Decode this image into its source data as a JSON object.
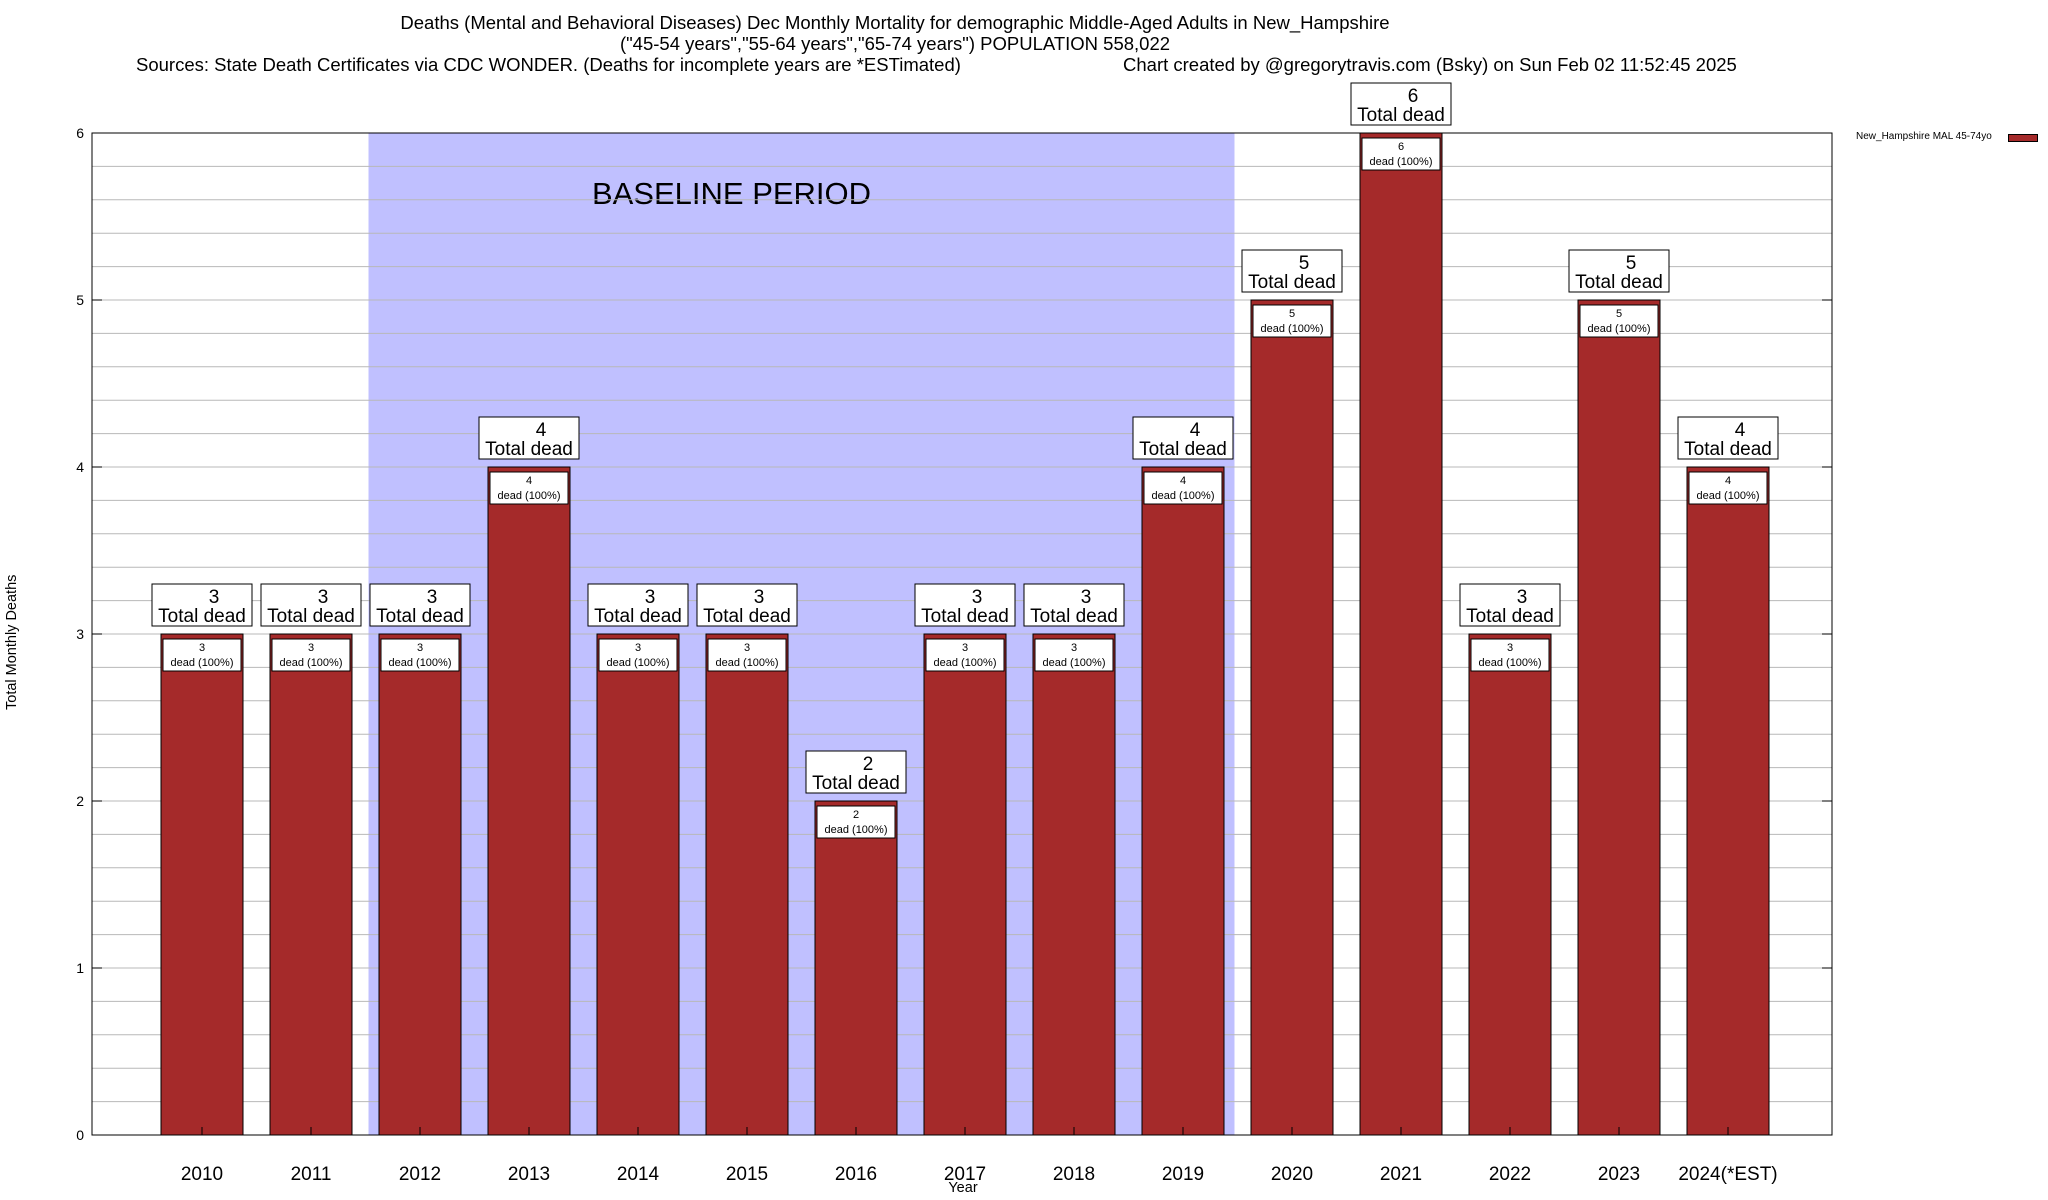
{
  "chart_data": {
    "type": "bar",
    "title_lines": [
      "Deaths (Mental and Behavioral Diseases) Dec Monthly Mortality for demographic Middle-Aged Adults in New_Hampshire",
      "(\"45-54 years\",\"55-64 years\",\"65-74 years\") POPULATION 558,022"
    ],
    "sources_text": "Sources: State Death Certificates via CDC WONDER. (Deaths for incomplete years are *ESTimated)",
    "credit_text": "Chart created by @gregorytravis.com (Bsky) on Sun Feb 02 11:52:45 2025",
    "xlabel": "Year",
    "ylabel": "Total Monthly Deaths",
    "ylim": [
      0,
      6
    ],
    "yticks": [
      0,
      1,
      2,
      3,
      4,
      5,
      6
    ],
    "grid": true,
    "categories": [
      "2010",
      "2011",
      "2012",
      "2013",
      "2014",
      "2015",
      "2016",
      "2017",
      "2018",
      "2019",
      "2020",
      "2021",
      "2022",
      "2023",
      "2024(*EST)"
    ],
    "series": [
      {
        "name": "New_Hampshire MAL 45-74yo",
        "color": "#a52a2a",
        "values": [
          3,
          3,
          3,
          4,
          3,
          3,
          2,
          3,
          3,
          4,
          5,
          6,
          3,
          5,
          4
        ]
      }
    ],
    "total_label_suffix": "Total dead",
    "inner_label_suffix": "dead (100%)",
    "baseline": {
      "label": "BASELINE PERIOD",
      "from_category": "2012",
      "to_category": "2019",
      "color": "#c0c0ff"
    },
    "legend_placement": "top-right"
  }
}
